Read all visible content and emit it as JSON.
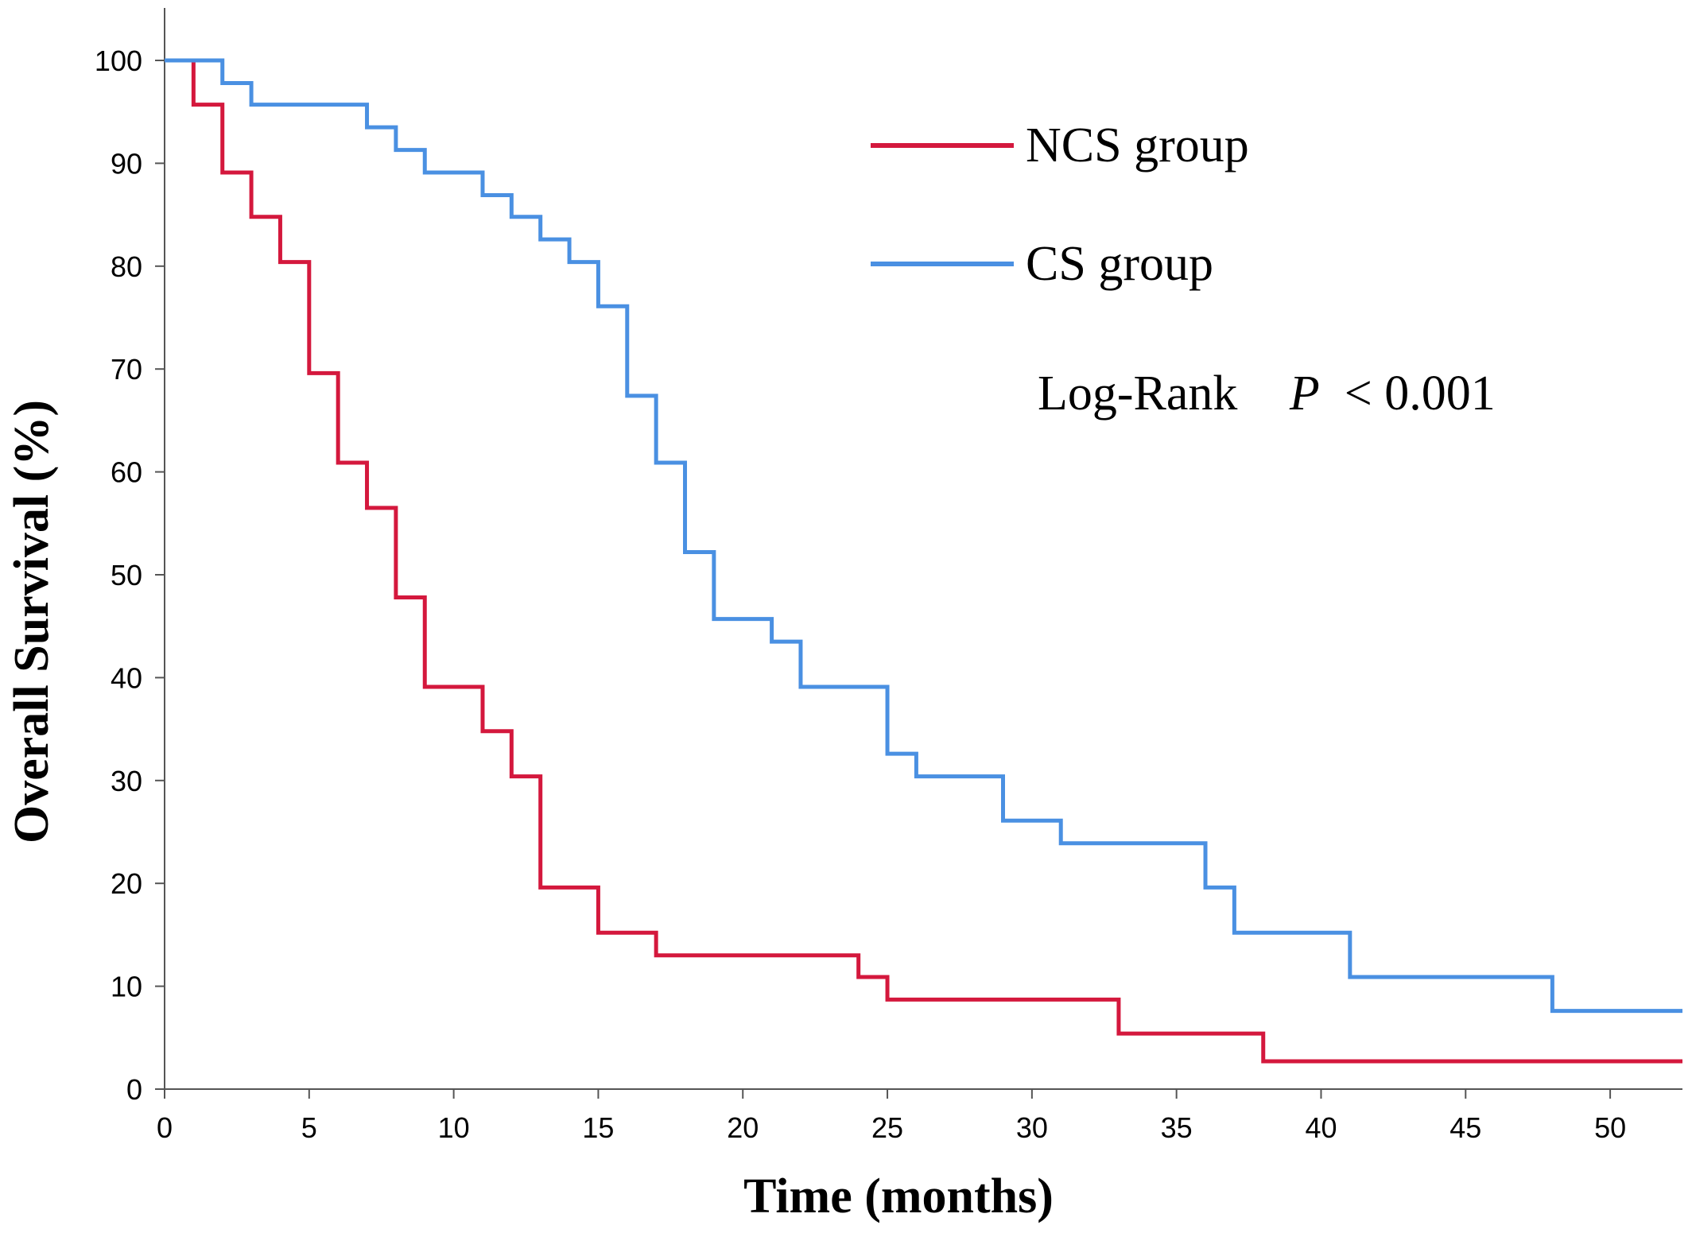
{
  "chart_data": {
    "type": "line",
    "step": true,
    "title": "",
    "xlabel": "Time (months)",
    "ylabel": "Overall Survival (%)",
    "xlim": [
      0,
      52.5
    ],
    "ylim": [
      0,
      100
    ],
    "xticks": [
      0,
      5,
      10,
      15,
      20,
      25,
      30,
      35,
      40,
      45,
      50
    ],
    "yticks": [
      0,
      10,
      20,
      30,
      40,
      50,
      60,
      70,
      80,
      90,
      100
    ],
    "grid": false,
    "legend_position": "top-right",
    "series": [
      {
        "name": "NCS group",
        "color": "#d4183d",
        "x": [
          0,
          1,
          2,
          3,
          4,
          5,
          6,
          7,
          8,
          9,
          11,
          12,
          13,
          15,
          17,
          24,
          25,
          33,
          38,
          52.5
        ],
        "y": [
          100,
          95.7,
          89.1,
          84.8,
          80.4,
          69.6,
          60.9,
          56.5,
          47.8,
          39.1,
          34.8,
          30.4,
          19.6,
          15.2,
          13.0,
          10.9,
          8.7,
          5.4,
          2.7,
          2.7
        ]
      },
      {
        "name": "CS group",
        "color": "#4a90e2",
        "x": [
          0,
          2,
          3,
          7,
          8,
          9,
          11,
          12,
          13,
          14,
          15,
          16,
          17,
          18,
          19,
          21,
          22,
          25,
          26,
          29,
          31,
          36,
          37,
          41,
          48,
          52.5
        ],
        "y": [
          100,
          97.8,
          95.7,
          93.5,
          91.3,
          89.1,
          86.9,
          84.8,
          82.6,
          80.4,
          76.1,
          67.4,
          60.9,
          52.2,
          45.7,
          43.5,
          39.1,
          32.6,
          30.4,
          26.1,
          23.9,
          19.6,
          15.2,
          10.9,
          7.6,
          7.6
        ]
      }
    ],
    "annotation": {
      "prefix": "Log-Rank",
      "stat_symbol": "P",
      "stat_value": " < 0.001"
    }
  }
}
